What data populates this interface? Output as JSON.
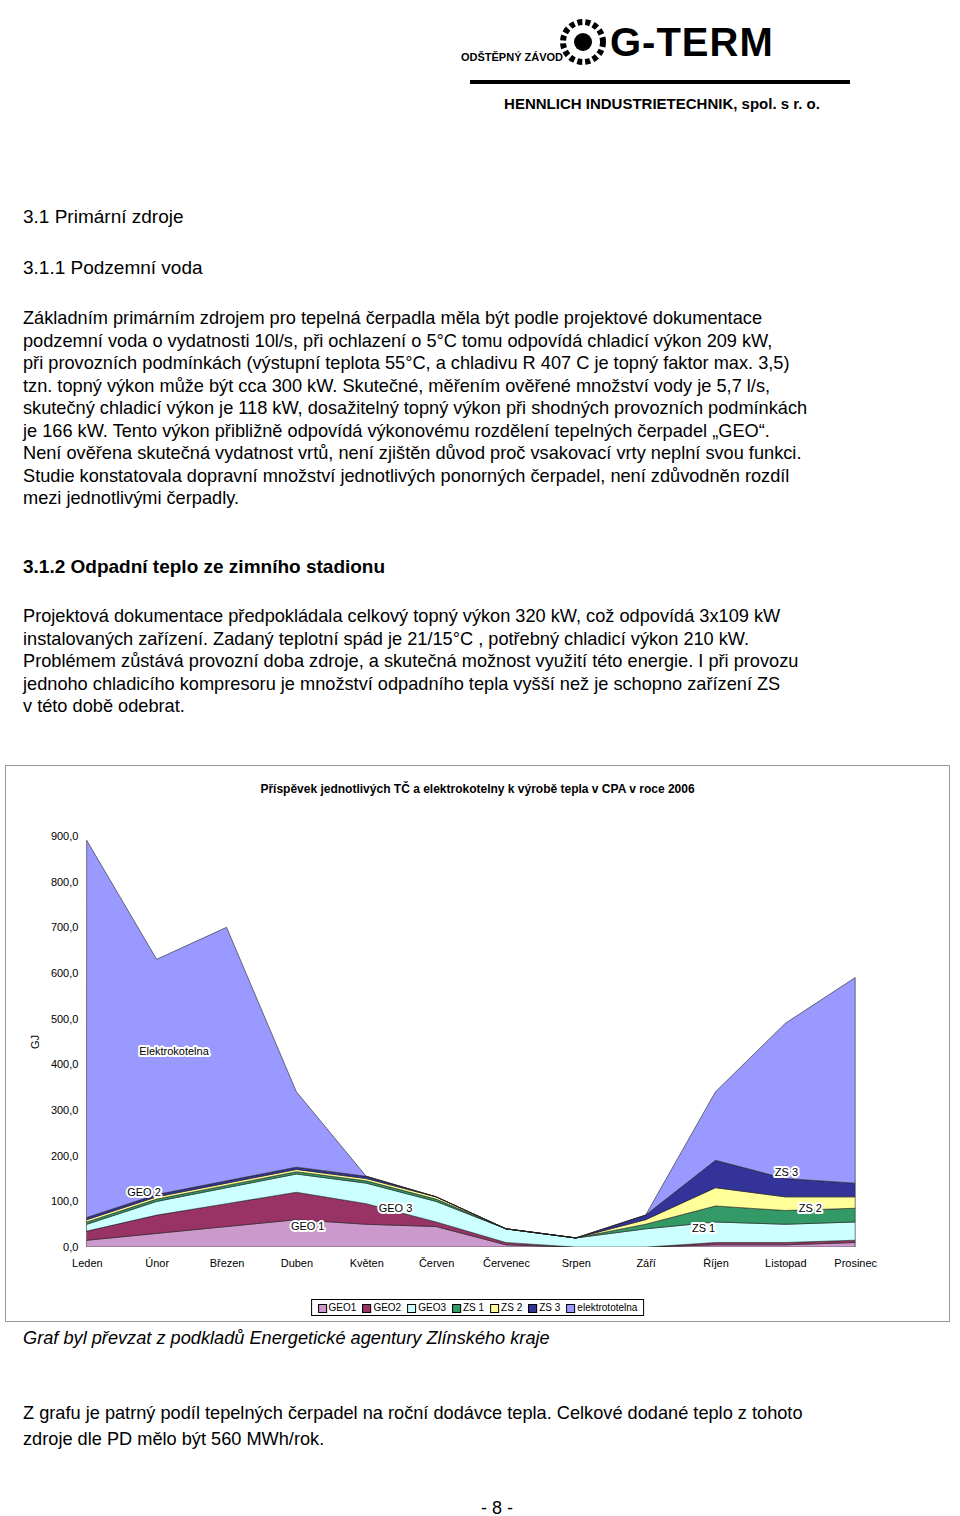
{
  "header": {
    "logo_small": "ODŠTĚPNÝ ZÁVOD",
    "logo": "G-TERM",
    "company": "HENNLICH INDUSTRIETECHNIK, spol. s r. o."
  },
  "sections": [
    {
      "heading": "3.1 Primární zdroje"
    },
    {
      "heading": "3.1.1 Podzemní voda",
      "lines": [
        "Základním primárním zdrojem pro tepelná čerpadla měla být podle projektové dokumentace",
        "podzemní voda o vydatnosti 10l/s, při ochlazení o 5°C tomu odpovídá chladicí výkon 209 kW,",
        "při provozních podmínkách (výstupní teplota 55°C, a chladivu R 407 C je topný faktor max. 3,5)",
        "tzn. topný výkon může být cca 300 kW. Skutečné, měřením ověřené  množství vody je 5,7 l/s,",
        "skutečný chladicí výkon je 118 kW, dosažitelný topný výkon při shodných provozních podmínkách",
        "je 166 kW. Tento výkon přibližně odpovídá výkonovému rozdělení tepelných čerpadel „GEO“.",
        "Není ověřena skutečná vydatnost vrtů, není zjištěn důvod proč vsakovací vrty neplní svou funkci.",
        "Studie konstatovala dopravní množství jednotlivých ponorných čerpadel, není zdůvodněn rozdíl",
        "mezi jednotlivými čerpadly."
      ]
    },
    {
      "heading": "3.1.2 Odpadní teplo ze zimního stadionu",
      "lines": [
        "Projektová dokumentace předpokládala celkový topný výkon 320 kW, což odpovídá 3x109 kW",
        "instalovaných zařízení. Zadaný teplotní spád je 21/15°C , potřebný chladicí výkon 210 kW.",
        "Problémem zůstává provozní doba zdroje, a skutečná možnost využití této energie. I při provozu",
        "jednoho chladicího kompresoru je množství odpadního  tepla vyšší než je schopno zařízení ZS",
        "v této době odebrat."
      ]
    }
  ],
  "chart_data": {
    "type": "area",
    "stacked": true,
    "title": "Příspěvek jednotlivých TČ a elektrokotelny k výrobě tepla v CPA v roce 2006",
    "ylabel": "GJ",
    "categories": [
      "Leden",
      "Únor",
      "Březen",
      "Duben",
      "Květen",
      "Červen",
      "Červenec",
      "Srpen",
      "Září",
      "Říjen",
      "Listopad",
      "Prosinec"
    ],
    "series": [
      {
        "name": "GEO1",
        "color": "#cc99cc",
        "values": [
          15,
          30,
          45,
          60,
          50,
          45,
          5,
          0,
          0,
          5,
          5,
          10
        ]
      },
      {
        "name": "GEO2",
        "color": "#993366",
        "values": [
          20,
          40,
          50,
          60,
          45,
          10,
          5,
          0,
          0,
          5,
          5,
          5
        ]
      },
      {
        "name": "GEO3",
        "color": "#ccffff",
        "values": [
          15,
          30,
          35,
          40,
          45,
          45,
          30,
          20,
          40,
          45,
          40,
          40
        ]
      },
      {
        "name": "ZS 1",
        "color": "#339966",
        "values": [
          5,
          5,
          5,
          5,
          5,
          5,
          0,
          0,
          10,
          35,
          30,
          30
        ]
      },
      {
        "name": "ZS 2",
        "color": "#ffff99",
        "values": [
          5,
          5,
          5,
          5,
          5,
          5,
          0,
          0,
          10,
          40,
          30,
          25
        ]
      },
      {
        "name": "ZS 3",
        "color": "#333399",
        "values": [
          5,
          5,
          5,
          5,
          5,
          0,
          0,
          0,
          10,
          60,
          40,
          30
        ]
      },
      {
        "name": "elektrototelna",
        "color": "#9999ff",
        "values": [
          825,
          515,
          555,
          165,
          0,
          0,
          0,
          0,
          0,
          150,
          340,
          450
        ]
      }
    ],
    "ylim": [
      0,
      900
    ],
    "yticks": [
      {
        "value": 0,
        "label": "0,0"
      },
      {
        "value": 100,
        "label": "100,0"
      },
      {
        "value": 200,
        "label": "200,0"
      },
      {
        "value": 300,
        "label": "300,0"
      },
      {
        "value": 400,
        "label": "400,0"
      },
      {
        "value": 500,
        "label": "500,0"
      },
      {
        "value": 600,
        "label": "600,0"
      },
      {
        "value": 700,
        "label": "700,0"
      },
      {
        "value": 800,
        "label": "800,0"
      },
      {
        "value": 900,
        "label": "900,0"
      }
    ],
    "legend": "bottom",
    "annotations": [
      {
        "text": "Elektrokotelna",
        "x": "Únor",
        "y": 430
      },
      {
        "text": "GEO 2",
        "x": "Únor",
        "y": 120
      },
      {
        "text": "GEO 3",
        "x": "Červen",
        "y": 85
      },
      {
        "text": "GEO 1",
        "x": "Květen",
        "y": 46
      },
      {
        "text": "ZS 3",
        "x": "Listopad",
        "y": 164
      },
      {
        "text": "ZS 2",
        "x": "Prosinec",
        "y": 85
      },
      {
        "text": "ZS 1",
        "x": "Říjen",
        "y": 41
      }
    ]
  },
  "caption": "Graf byl převzat z podkladů Energetické agentury Zlínského kraje",
  "closing": [
    "Z grafu je patrný podíl tepelných čerpadel na roční dodávce tepla. Celkové dodané teplo z tohoto",
    "zdroje dle PD mělo být 560 MWh/rok."
  ],
  "footer": "- 8 -"
}
